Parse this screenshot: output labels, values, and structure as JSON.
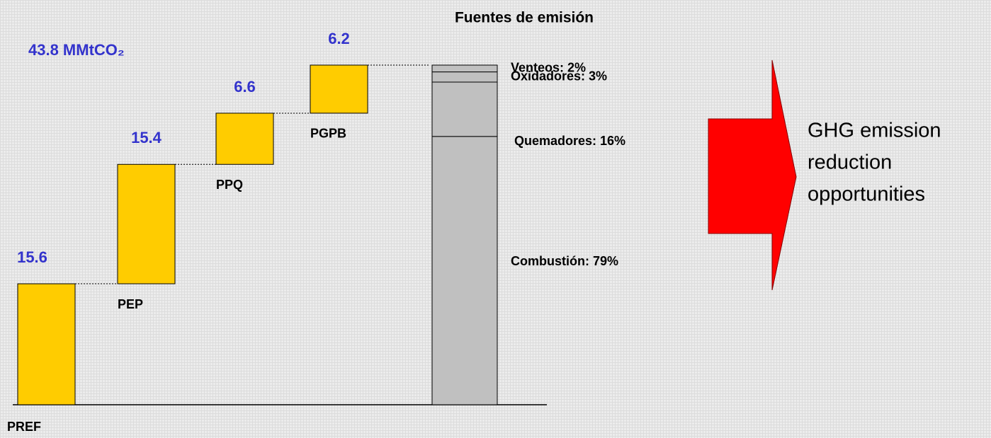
{
  "chart_data": {
    "type": "waterfall",
    "title": "Fuentes de emisión",
    "total": {
      "value": 43.8,
      "label": "43.8 MMtCO₂"
    },
    "categories": [
      "PREF",
      "PEP",
      "PPQ",
      "PGPB"
    ],
    "values": [
      15.6,
      15.4,
      6.6,
      6.2
    ],
    "color": "#ffcc00",
    "stack": {
      "color": "#c0c0c0",
      "names": [
        "Combustión",
        "Quemadores",
        "Oxidadores",
        "Venteos"
      ],
      "values": [
        79,
        16,
        3,
        2
      ],
      "value_labels": [
        "Combustión: 79%",
        "Quemadores: 16%",
        "Oxidadores: 3%",
        "Venteos:  2%"
      ]
    },
    "arrow": {
      "color": "#ff0000",
      "text": [
        "GHG emission",
        "reduction",
        "opportunities"
      ]
    }
  }
}
